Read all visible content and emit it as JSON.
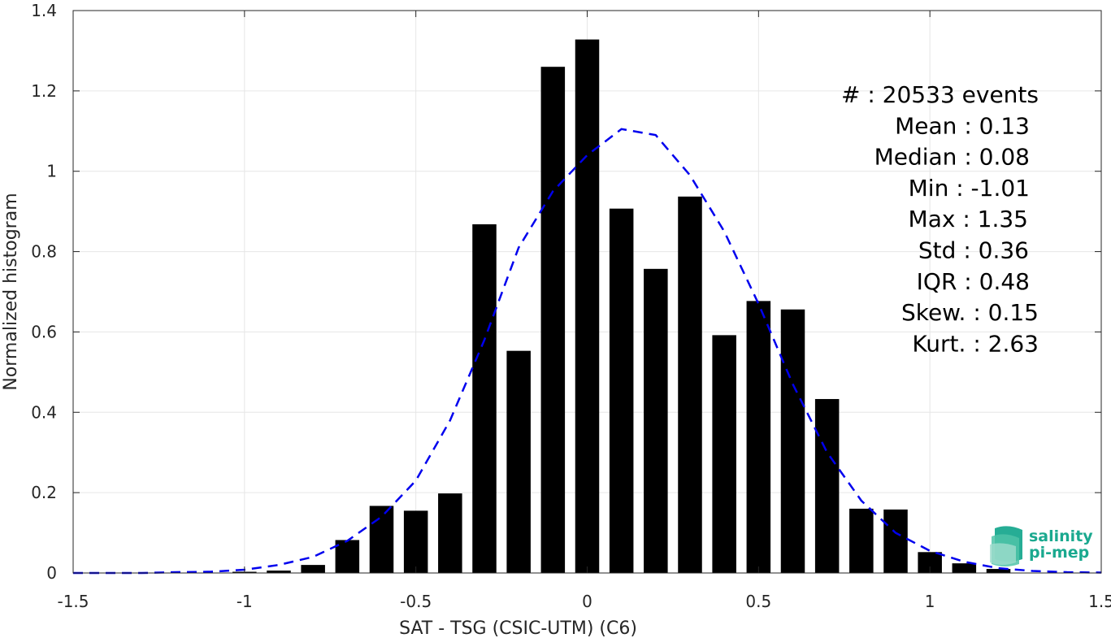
{
  "chart_data": {
    "type": "bar",
    "xlabel": "SAT - TSG (CSIC-UTM) (C6)",
    "ylabel": "Normalized histogram",
    "xlim": [
      -1.5,
      1.5
    ],
    "ylim": [
      0,
      1.4
    ],
    "xticks": [
      -1.5,
      -1,
      -0.5,
      0,
      0.5,
      1,
      1.5
    ],
    "xtick_labels": [
      "-1.5",
      "-1",
      "-0.5",
      "0",
      "0.5",
      "1",
      "1.5"
    ],
    "yticks": [
      0,
      0.2,
      0.4,
      0.6,
      0.8,
      1,
      1.2,
      1.4
    ],
    "ytick_labels": [
      "0",
      "0.2",
      "0.4",
      "0.6",
      "0.8",
      "1",
      "1.2",
      "1.4"
    ],
    "grid": true,
    "bar_width": 0.07,
    "bar_color": "#000000",
    "bars": {
      "x": [
        -1.0,
        -0.9,
        -0.8,
        -0.7,
        -0.6,
        -0.5,
        -0.4,
        -0.3,
        -0.2,
        -0.1,
        0.0,
        0.1,
        0.2,
        0.3,
        0.4,
        0.5,
        0.6,
        0.7,
        0.8,
        0.9,
        1.0,
        1.1,
        1.2
      ],
      "values": [
        0.003,
        0.006,
        0.02,
        0.082,
        0.167,
        0.155,
        0.198,
        0.868,
        0.553,
        1.26,
        1.328,
        0.907,
        0.757,
        0.937,
        0.592,
        0.677,
        0.656,
        0.433,
        0.16,
        0.158,
        0.052,
        0.024,
        0.01
      ]
    },
    "fit_curve": {
      "style": "dashed",
      "color": "#0000ee",
      "x": [
        -1.5,
        -1.4,
        -1.3,
        -1.2,
        -1.1,
        -1.0,
        -0.9,
        -0.8,
        -0.7,
        -0.6,
        -0.5,
        -0.4,
        -0.3,
        -0.2,
        -0.1,
        0.0,
        0.1,
        0.2,
        0.3,
        0.4,
        0.5,
        0.6,
        0.7,
        0.8,
        0.9,
        1.0,
        1.1,
        1.2,
        1.3,
        1.4,
        1.5
      ],
      "y": [
        0.0,
        0.0,
        0.0,
        0.002,
        0.003,
        0.008,
        0.02,
        0.04,
        0.08,
        0.14,
        0.23,
        0.38,
        0.58,
        0.81,
        0.95,
        1.04,
        1.105,
        1.09,
        0.99,
        0.85,
        0.67,
        0.47,
        0.3,
        0.18,
        0.1,
        0.055,
        0.028,
        0.012,
        0.005,
        0.002,
        0.001
      ]
    },
    "annotations": [
      "#  : 20533 events",
      "Mean : 0.13",
      "Median : 0.08",
      "Min : -1.01",
      "Max : 1.35",
      "Std : 0.36",
      "IQR : 0.48",
      "Skew. : 0.15",
      "Kurt. : 2.63"
    ]
  },
  "logo": {
    "line1": "salinity",
    "line2": "pi-mep",
    "color": "#1aa98f"
  }
}
